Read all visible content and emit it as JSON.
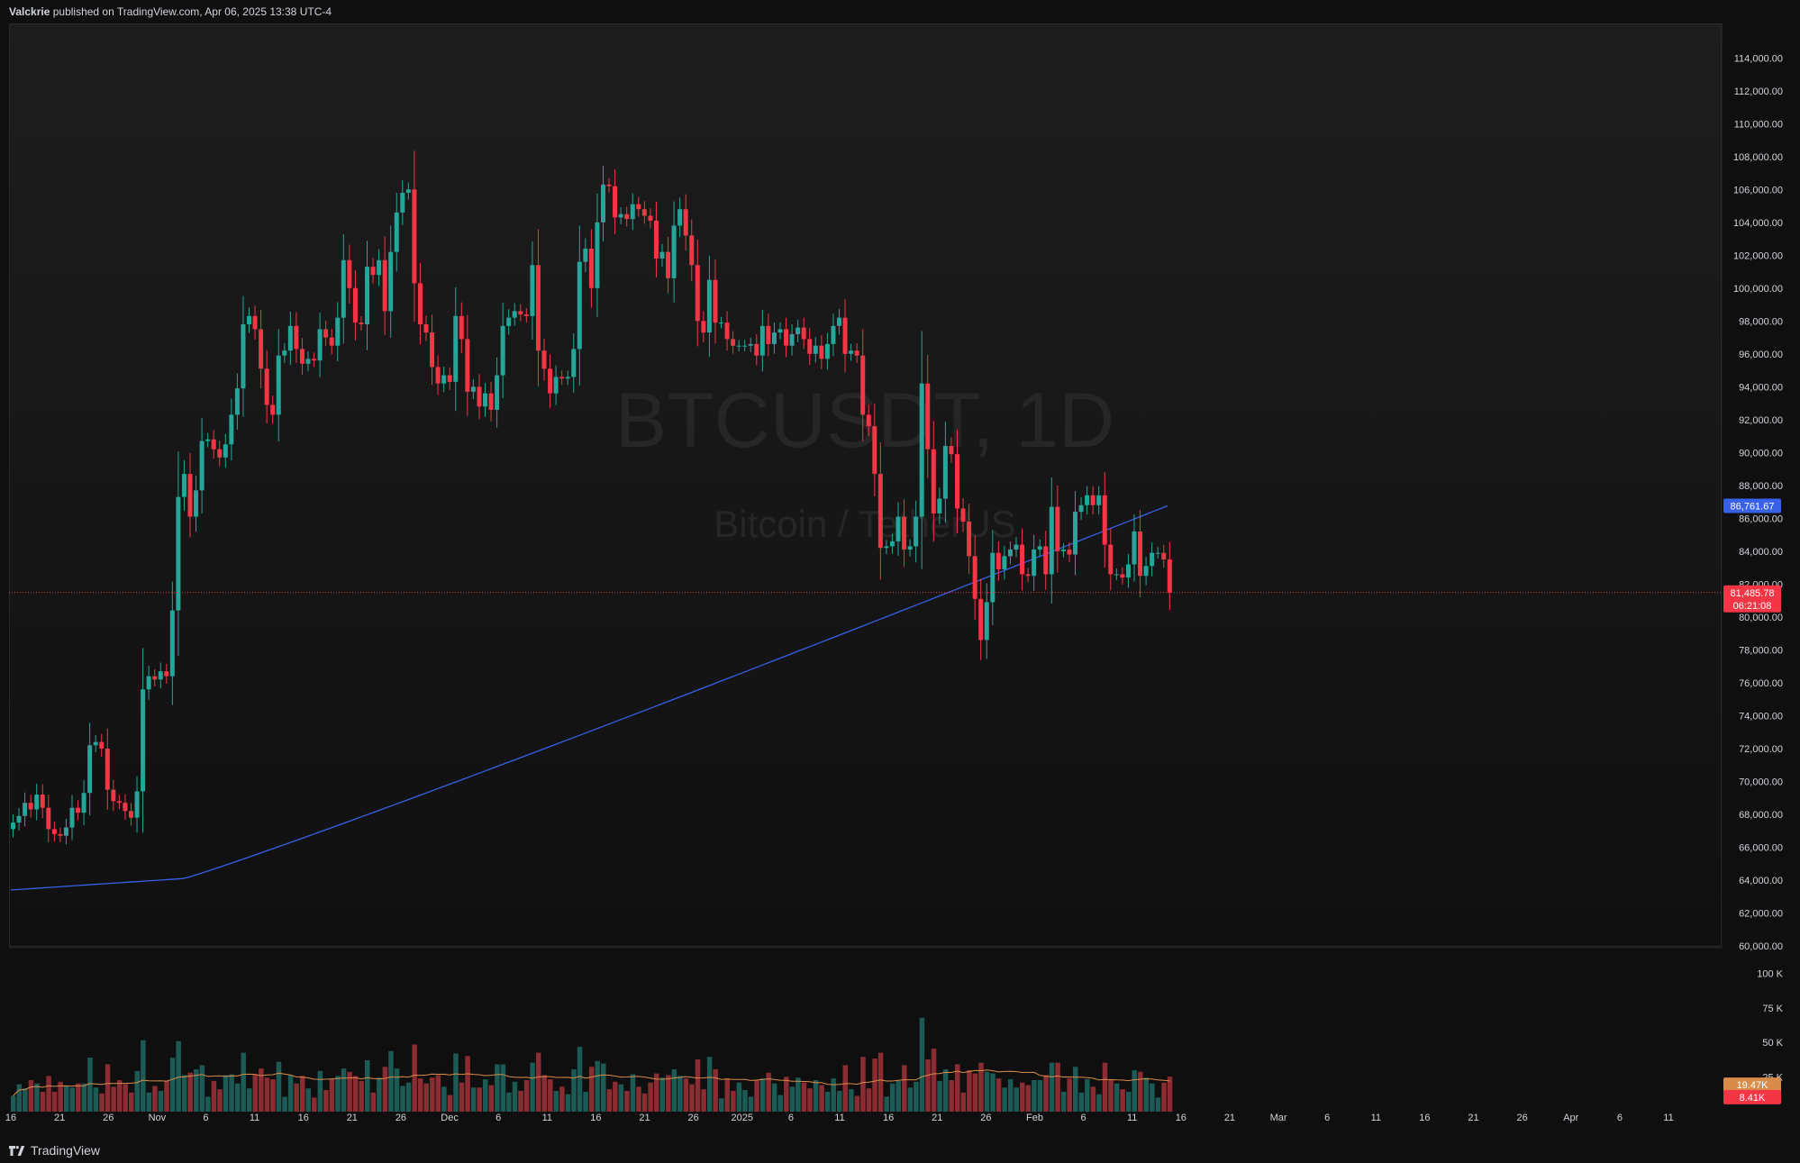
{
  "header": {
    "author": "Valckrie",
    "published_text": "published on TradingView.com, Apr 06, 2025 13:38 UTC-4"
  },
  "watermark": {
    "symbol": "BTCUSDT, 1D",
    "description": "Bitcoin / TetherUS"
  },
  "footer": {
    "brand": "TradingView"
  },
  "colors": {
    "up": "#26a69a",
    "down": "#f23645",
    "vol_up": "#1c5a55",
    "vol_down": "#8a2c31",
    "ma_line": "#3860e8",
    "vol_ma": "#d98c4a",
    "background": "#131313",
    "text": "#d1d4dc"
  },
  "chart_data": [
    {
      "type": "candlestick",
      "symbol": "BTCUSDT",
      "interval": "1D",
      "y_axis_ticks": [
        "114,000.00",
        "112,000.00",
        "110,000.00",
        "108,000.00",
        "106,000.00",
        "104,000.00",
        "102,000.00",
        "100,000.00",
        "98,000.00",
        "96,000.00",
        "94,000.00",
        "92,000.00",
        "90,000.00",
        "88,000.00",
        "86,000.00",
        "84,000.00",
        "82,000.00",
        "80,000.00",
        "78,000.00",
        "76,000.00",
        "74,000.00",
        "72,000.00",
        "70,000.00",
        "68,000.00",
        "66,000.00",
        "64,000.00",
        "62,000.00",
        "60,000.00"
      ],
      "ylim": [
        60000,
        115000
      ],
      "x_axis_ticks": [
        "16",
        "21",
        "26",
        "Nov",
        "6",
        "11",
        "16",
        "21",
        "26",
        "Dec",
        "6",
        "11",
        "16",
        "21",
        "26",
        "2025",
        "6",
        "11",
        "16",
        "21",
        "26",
        "Feb",
        "6",
        "11",
        "16",
        "21",
        "Mar",
        "6",
        "11",
        "16",
        "21",
        "26",
        "Apr",
        "6",
        "11"
      ],
      "ohlc_close_series": [
        67500,
        67900,
        68700,
        68300,
        69200,
        68400,
        67100,
        66800,
        66700,
        67200,
        68400,
        68100,
        69300,
        72200,
        72400,
        72000,
        69500,
        68800,
        68700,
        68200,
        67800,
        69400,
        75600,
        76400,
        76200,
        76700,
        76400,
        80400,
        87300,
        88700,
        86100,
        87700,
        90700,
        90800,
        90200,
        89700,
        90500,
        92300,
        93900,
        97800,
        98300,
        97500,
        95100,
        92900,
        92300,
        95900,
        96200,
        97700,
        96300,
        95400,
        95700,
        95600,
        97500,
        97000,
        96500,
        98200,
        101700,
        100000,
        97900,
        97800,
        101300,
        100800,
        101700,
        98600,
        102200,
        104600,
        105800,
        106000,
        100300,
        97800,
        97300,
        95200,
        94200,
        94700,
        94300,
        98300,
        96900,
        93700,
        94000,
        92800,
        93600,
        92600,
        94700,
        97700,
        98200,
        98600,
        98400,
        98300,
        101400,
        96200,
        95100,
        93600,
        94600,
        94500,
        94600,
        96300,
        101600,
        102400,
        100000,
        104000,
        106300,
        106200,
        104300,
        104500,
        104200,
        105100,
        104800,
        104400,
        104100,
        101800,
        102200,
        100600,
        103800,
        104800,
        103200,
        101400,
        98000,
        97300,
        100500,
        97900,
        97900,
        96900,
        96500,
        96500,
        96500,
        96600,
        95900,
        97700,
        96600,
        97300,
        97500,
        96500,
        97200,
        97600,
        96900,
        96000,
        96500,
        95700,
        96600,
        97700,
        98200,
        96000,
        96200,
        95900,
        92300,
        91600,
        88700,
        84200,
        84300,
        84600,
        86100,
        84100,
        84300,
        86100,
        94200,
        90200,
        86300,
        87200,
        90400,
        89900,
        86600,
        85800,
        83700,
        81100,
        78600,
        80900,
        83900,
        82900,
        83700,
        84100,
        84400,
        82600,
        82500,
        84100,
        84300,
        82600,
        86700,
        84000,
        84100,
        83800,
        86400,
        86800,
        87400,
        86800,
        87400,
        84400,
        82600,
        82600,
        82400,
        83200,
        85200,
        82500,
        83100,
        83900,
        83900,
        83500,
        81485.78
      ],
      "moving_average": {
        "label": "86,761.67",
        "series_start": 63400,
        "series_end": 86761.67
      },
      "current_price": {
        "label": "81,485.78",
        "countdown": "06:21:08"
      }
    },
    {
      "type": "bar",
      "name": "Volume",
      "y_axis_ticks": [
        "100 K",
        "75 K",
        "50 K",
        "25 K"
      ],
      "ylim": [
        0,
        112000
      ],
      "vol_ma_label": "19.47K",
      "last_volume_label": "8.41K"
    }
  ]
}
